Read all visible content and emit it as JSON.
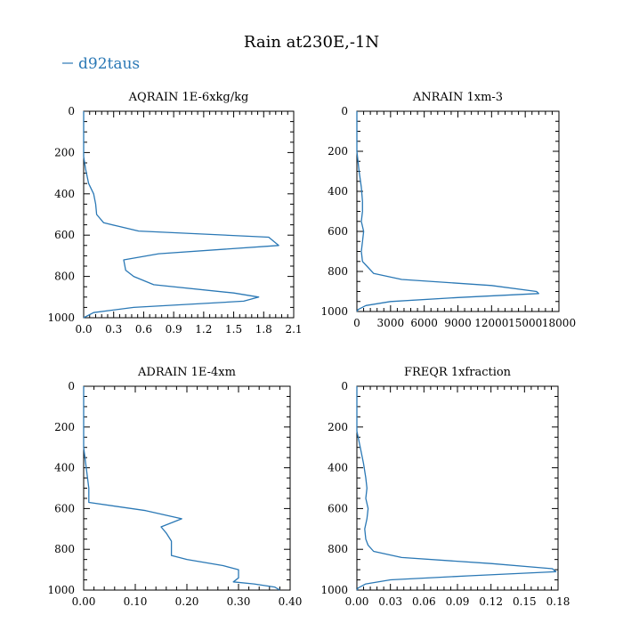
{
  "title": "Rain at230E,-1N",
  "legend": {
    "label": "d92taus",
    "color": "#2a78b5",
    "placement": "top-left"
  },
  "chart_data": [
    {
      "type": "line",
      "title": "AQRAIN  1E-6xkg/kg",
      "xlim": [
        0,
        2.1
      ],
      "ylim": [
        1000,
        0
      ],
      "xticks": [
        0.0,
        0.3,
        0.6,
        0.9,
        1.2,
        1.5,
        1.8,
        2.1
      ],
      "xtick_labels": [
        "0.0",
        "0.3",
        "0.6",
        "0.9",
        "1.2",
        "1.5",
        "1.8",
        "2.1"
      ],
      "yticks": [
        0,
        200,
        400,
        600,
        800,
        1000
      ],
      "ytick_labels": [
        "0",
        "200",
        "400",
        "600",
        "800",
        "1000"
      ],
      "series": [
        {
          "name": "d92taus",
          "x": [
            0,
            0,
            0.02,
            0.05,
            0.1,
            0.12,
            0.13,
            0.2,
            0.55,
            1.85,
            1.95,
            0.75,
            0.4,
            0.42,
            0.5,
            0.7,
            1.5,
            1.75,
            1.6,
            0.5,
            0.1,
            0
          ],
          "y": [
            0,
            220,
            280,
            350,
            400,
            450,
            500,
            540,
            580,
            610,
            650,
            690,
            720,
            770,
            800,
            840,
            880,
            900,
            920,
            950,
            975,
            1000
          ]
        }
      ]
    },
    {
      "type": "line",
      "title": "ANRAIN  1xm-3",
      "xlim": [
        0,
        18000
      ],
      "ylim": [
        1000,
        0
      ],
      "xticks": [
        0,
        3000,
        6000,
        9000,
        12000,
        15000,
        18000
      ],
      "xtick_labels": [
        "0",
        "3000",
        "6000",
        "9000",
        "12000",
        "15000",
        "18000"
      ],
      "yticks": [
        0,
        200,
        400,
        600,
        800,
        1000
      ],
      "ytick_labels": [
        "0",
        "200",
        "400",
        "600",
        "800",
        "1000"
      ],
      "series": [
        {
          "name": "d92taus",
          "x": [
            0,
            0,
            200,
            400,
            500,
            500,
            400,
            600,
            500,
            400,
            500,
            1000,
            1500,
            4000,
            12000,
            16000,
            16200,
            9000,
            3000,
            800,
            100,
            0
          ],
          "y": [
            0,
            200,
            300,
            380,
            450,
            500,
            550,
            600,
            650,
            700,
            750,
            780,
            810,
            840,
            870,
            900,
            910,
            930,
            950,
            970,
            990,
            1000
          ]
        }
      ]
    },
    {
      "type": "line",
      "title": "ADRAIN  1E-4xm",
      "xlim": [
        0,
        0.4
      ],
      "ylim": [
        1000,
        0
      ],
      "xticks": [
        0.0,
        0.1,
        0.2,
        0.3,
        0.4
      ],
      "xtick_labels": [
        "0.00",
        "0.10",
        "0.20",
        "0.30",
        "0.40"
      ],
      "yticks": [
        0,
        200,
        400,
        600,
        800,
        1000
      ],
      "ytick_labels": [
        "0",
        "200",
        "400",
        "600",
        "800",
        "1000"
      ],
      "series": [
        {
          "name": "d92taus",
          "x": [
            0,
            0,
            0.005,
            0.01,
            0.01,
            0.12,
            0.19,
            0.15,
            0.16,
            0.17,
            0.17,
            0.2,
            0.27,
            0.3,
            0.3,
            0.3,
            0.29,
            0.33,
            0.37,
            0.38
          ],
          "y": [
            0,
            300,
            400,
            500,
            570,
            610,
            650,
            690,
            720,
            760,
            830,
            850,
            880,
            900,
            920,
            940,
            960,
            970,
            985,
            1000
          ]
        }
      ]
    },
    {
      "type": "line",
      "title": "FREQR  1xfraction",
      "xlim": [
        0,
        0.18
      ],
      "ylim": [
        1000,
        0
      ],
      "xticks": [
        0,
        0.03,
        0.06,
        0.09,
        0.12,
        0.15,
        0.18
      ],
      "xtick_labels": [
        "0.00",
        "0.03",
        "0.06",
        "0.09",
        "0.12",
        "0.15",
        "0.18"
      ],
      "yticks": [
        0,
        200,
        400,
        600,
        800,
        1000
      ],
      "ytick_labels": [
        "0",
        "200",
        "400",
        "600",
        "800",
        "1000"
      ],
      "series": [
        {
          "name": "d92taus",
          "x": [
            0,
            0,
            0.003,
            0.006,
            0.008,
            0.009,
            0.008,
            0.01,
            0.009,
            0.007,
            0.008,
            0.01,
            0.015,
            0.04,
            0.12,
            0.175,
            0.178,
            0.1,
            0.03,
            0.008,
            0.001,
            0
          ],
          "y": [
            0,
            220,
            300,
            380,
            450,
            500,
            550,
            600,
            650,
            700,
            750,
            780,
            810,
            840,
            870,
            895,
            910,
            930,
            950,
            970,
            990,
            1000
          ]
        }
      ]
    }
  ]
}
